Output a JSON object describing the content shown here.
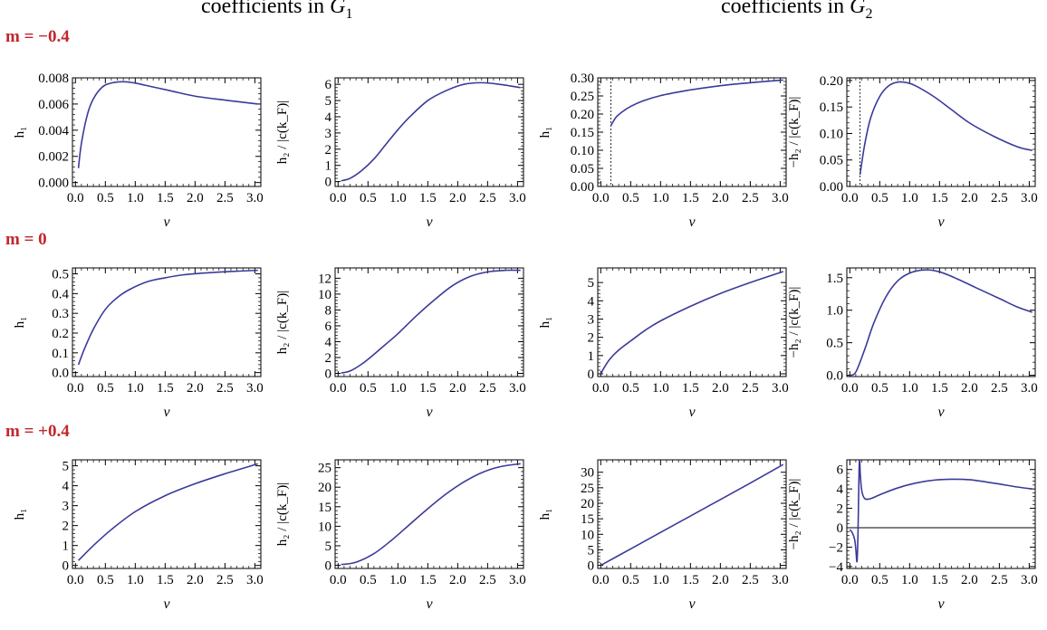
{
  "headers": {
    "left": {
      "text": "coefficients in ",
      "var": "G",
      "sub": "1"
    },
    "right": {
      "text": "coefficients in ",
      "var": "G",
      "sub": "2"
    }
  },
  "row_labels": [
    "m = −0.4",
    "m = 0",
    "m = +0.4"
  ],
  "style": {
    "line_color": "#3a3a9a",
    "row_label_color": "#c0272d"
  },
  "chart_data": [
    {
      "type": "line",
      "row": 0,
      "col": 0,
      "xlabel": "ν",
      "ylabel": "h₁",
      "xlim": [
        -0.05,
        3.1
      ],
      "ylim": [
        -0.0003,
        0.008
      ],
      "xticks": [
        "0.0",
        "0.5",
        "1.0",
        "1.5",
        "2.0",
        "2.5",
        "3.0"
      ],
      "yticks": [
        "0.000",
        "0.002",
        "0.004",
        "0.006",
        "0.008"
      ],
      "series": [
        {
          "x": [
            0.05,
            0.1,
            0.2,
            0.3,
            0.45,
            0.6,
            0.8,
            1.0,
            1.3,
            1.6,
            2.0,
            2.5,
            3.05
          ],
          "y": [
            0.0011,
            0.003,
            0.0052,
            0.0064,
            0.0073,
            0.0076,
            0.0077,
            0.0076,
            0.0073,
            0.007,
            0.0066,
            0.0063,
            0.006
          ]
        }
      ]
    },
    {
      "type": "line",
      "row": 0,
      "col": 1,
      "xlabel": "ν",
      "ylabel": "h₂ / |c(k_F)|",
      "xlim": [
        -0.05,
        3.1
      ],
      "ylim": [
        -0.3,
        6.4
      ],
      "xticks": [
        "0.0",
        "0.5",
        "1.0",
        "1.5",
        "2.0",
        "2.5",
        "3.0"
      ],
      "yticks": [
        "0",
        "1",
        "2",
        "3",
        "4",
        "5",
        "6"
      ],
      "series": [
        {
          "x": [
            0.05,
            0.2,
            0.4,
            0.6,
            0.8,
            1.0,
            1.2,
            1.5,
            1.8,
            2.1,
            2.4,
            2.7,
            3.05
          ],
          "y": [
            0.05,
            0.2,
            0.7,
            1.4,
            2.3,
            3.2,
            4.0,
            5.0,
            5.6,
            6.0,
            6.1,
            6.0,
            5.8
          ]
        }
      ]
    },
    {
      "type": "line",
      "row": 0,
      "col": 2,
      "xlabel": "ν",
      "ylabel": "h₁",
      "xlim": [
        -0.05,
        3.1
      ],
      "ylim": [
        0.0,
        0.3
      ],
      "vline": 0.17,
      "xticks": [
        "0.0",
        "0.5",
        "1.0",
        "1.5",
        "2.0",
        "2.5",
        "3.0"
      ],
      "yticks": [
        "0.00",
        "0.05",
        "0.10",
        "0.15",
        "0.20",
        "0.25",
        "0.30"
      ],
      "series": [
        {
          "x": [
            0.17,
            0.25,
            0.35,
            0.5,
            0.7,
            1.0,
            1.4,
            1.8,
            2.2,
            2.6,
            3.05
          ],
          "y": [
            0.168,
            0.19,
            0.205,
            0.221,
            0.236,
            0.251,
            0.264,
            0.274,
            0.282,
            0.288,
            0.294
          ]
        }
      ]
    },
    {
      "type": "line",
      "row": 0,
      "col": 3,
      "xlabel": "ν",
      "ylabel": "−h₂ / |c(k_F)|",
      "xlim": [
        -0.05,
        3.1
      ],
      "ylim": [
        0.0,
        0.205
      ],
      "vline": 0.17,
      "xticks": [
        "0.0",
        "0.5",
        "1.0",
        "1.5",
        "2.0",
        "2.5",
        "3.0"
      ],
      "yticks": [
        "0.00",
        "0.05",
        "0.10",
        "0.15",
        "0.20"
      ],
      "series": [
        {
          "x": [
            0.17,
            0.25,
            0.35,
            0.5,
            0.65,
            0.8,
            0.95,
            1.1,
            1.4,
            1.7,
            2.0,
            2.4,
            2.8,
            3.05
          ],
          "y": [
            0.022,
            0.08,
            0.13,
            0.17,
            0.19,
            0.197,
            0.196,
            0.19,
            0.17,
            0.145,
            0.12,
            0.095,
            0.075,
            0.068
          ]
        }
      ]
    },
    {
      "type": "line",
      "row": 1,
      "col": 0,
      "xlabel": "ν",
      "ylabel": "h₁",
      "xlim": [
        -0.05,
        3.1
      ],
      "ylim": [
        -0.02,
        0.53
      ],
      "xticks": [
        "0.0",
        "0.5",
        "1.0",
        "1.5",
        "2.0",
        "2.5",
        "3.0"
      ],
      "yticks": [
        "0.0",
        "0.1",
        "0.2",
        "0.3",
        "0.4",
        "0.5"
      ],
      "series": [
        {
          "x": [
            0.05,
            0.15,
            0.3,
            0.5,
            0.7,
            0.9,
            1.2,
            1.5,
            1.8,
            2.2,
            2.6,
            3.05
          ],
          "y": [
            0.04,
            0.12,
            0.22,
            0.32,
            0.38,
            0.42,
            0.46,
            0.48,
            0.495,
            0.505,
            0.512,
            0.518
          ]
        }
      ]
    },
    {
      "type": "line",
      "row": 1,
      "col": 1,
      "xlabel": "ν",
      "ylabel": "h₂ / |c(k_F)|",
      "xlim": [
        -0.05,
        3.1
      ],
      "ylim": [
        -0.4,
        13.3
      ],
      "xticks": [
        "0.0",
        "0.5",
        "1.0",
        "1.5",
        "2.0",
        "2.5",
        "3.0"
      ],
      "yticks": [
        "0",
        "2",
        "4",
        "6",
        "8",
        "10",
        "12"
      ],
      "series": [
        {
          "x": [
            0.05,
            0.2,
            0.4,
            0.6,
            0.8,
            1.0,
            1.3,
            1.6,
            1.9,
            2.2,
            2.5,
            2.8,
            3.05
          ],
          "y": [
            0.05,
            0.3,
            1.2,
            2.4,
            3.7,
            5.0,
            7.2,
            9.2,
            11.0,
            12.2,
            12.8,
            13.0,
            13.0
          ]
        }
      ]
    },
    {
      "type": "line",
      "row": 1,
      "col": 2,
      "xlabel": "ν",
      "ylabel": "h₁",
      "xlim": [
        -0.05,
        3.1
      ],
      "ylim": [
        -0.15,
        5.8
      ],
      "xticks": [
        "0.0",
        "0.5",
        "1.0",
        "1.5",
        "2.0",
        "2.5",
        "3.0"
      ],
      "yticks": [
        "0",
        "1",
        "2",
        "3",
        "4",
        "5"
      ],
      "series": [
        {
          "x": [
            0.0,
            0.05,
            0.15,
            0.3,
            0.5,
            0.75,
            1.0,
            1.5,
            2.0,
            2.5,
            3.05
          ],
          "y": [
            0.0,
            0.3,
            0.8,
            1.3,
            1.8,
            2.4,
            2.9,
            3.7,
            4.4,
            5.0,
            5.6
          ]
        }
      ]
    },
    {
      "type": "line",
      "row": 1,
      "col": 3,
      "xlabel": "ν",
      "ylabel": "−h₂ / |c(k_F)|",
      "xlim": [
        -0.05,
        3.1
      ],
      "ylim": [
        -0.02,
        1.65
      ],
      "xticks": [
        "0.0",
        "0.5",
        "1.0",
        "1.5",
        "2.0",
        "2.5",
        "3.0"
      ],
      "yticks": [
        "0.0",
        "0.5",
        "1.0",
        "1.5"
      ],
      "series": [
        {
          "x": [
            0.0,
            0.1,
            0.25,
            0.4,
            0.6,
            0.8,
            1.0,
            1.25,
            1.5,
            1.8,
            2.1,
            2.5,
            2.8,
            3.05
          ],
          "y": [
            0.0,
            0.05,
            0.4,
            0.8,
            1.2,
            1.45,
            1.57,
            1.62,
            1.59,
            1.48,
            1.35,
            1.18,
            1.05,
            0.97
          ]
        }
      ]
    },
    {
      "type": "line",
      "row": 2,
      "col": 0,
      "xlabel": "ν",
      "ylabel": "h₁",
      "xlim": [
        -0.05,
        3.1
      ],
      "ylim": [
        -0.15,
        5.3
      ],
      "xticks": [
        "0.0",
        "0.5",
        "1.0",
        "1.5",
        "2.0",
        "2.5",
        "3.0"
      ],
      "yticks": [
        "0",
        "1",
        "2",
        "3",
        "4",
        "5"
      ],
      "series": [
        {
          "x": [
            0.05,
            0.3,
            0.6,
            1.0,
            1.5,
            2.0,
            2.5,
            3.05
          ],
          "y": [
            0.25,
            1.0,
            1.8,
            2.7,
            3.5,
            4.1,
            4.6,
            5.1
          ]
        }
      ]
    },
    {
      "type": "line",
      "row": 2,
      "col": 1,
      "xlabel": "ν",
      "ylabel": "h₂ / |c(k_F)|",
      "xlim": [
        -0.05,
        3.1
      ],
      "ylim": [
        -0.8,
        27.0
      ],
      "xticks": [
        "0.0",
        "0.5",
        "1.0",
        "1.5",
        "2.0",
        "2.5",
        "3.0"
      ],
      "yticks": [
        "0",
        "5",
        "10",
        "15",
        "20",
        "25"
      ],
      "series": [
        {
          "x": [
            0.05,
            0.3,
            0.6,
            0.9,
            1.2,
            1.5,
            1.8,
            2.1,
            2.4,
            2.7,
            3.05
          ],
          "y": [
            0.2,
            0.8,
            3.0,
            6.5,
            10.5,
            14.5,
            18.2,
            21.3,
            23.7,
            25.2,
            26.0
          ]
        }
      ]
    },
    {
      "type": "line",
      "row": 2,
      "col": 2,
      "xlabel": "ν",
      "ylabel": "h₁",
      "xlim": [
        -0.05,
        3.1
      ],
      "ylim": [
        -1.0,
        34.0
      ],
      "xticks": [
        "0.0",
        "0.5",
        "1.0",
        "1.5",
        "2.0",
        "2.5",
        "3.0"
      ],
      "yticks": [
        "0",
        "5",
        "10",
        "15",
        "20",
        "25",
        "30"
      ],
      "series": [
        {
          "x": [
            0.0,
            0.5,
            1.0,
            1.5,
            2.0,
            2.5,
            3.05
          ],
          "y": [
            0.0,
            5.3,
            10.6,
            15.9,
            21.2,
            26.5,
            32.5
          ]
        }
      ]
    },
    {
      "type": "line",
      "row": 2,
      "col": 3,
      "xlabel": "ν",
      "ylabel": "−h₂ / |c(k_F)|",
      "xlim": [
        -0.05,
        3.1
      ],
      "ylim": [
        -4.2,
        7.0
      ],
      "hline": 0,
      "xticks": [
        "0.0",
        "0.5",
        "1.0",
        "1.5",
        "2.0",
        "2.5",
        "3.0"
      ],
      "yticks": [
        "−4",
        "−2",
        "0",
        "2",
        "4",
        "6"
      ],
      "series": [
        {
          "x": [
            0.0,
            0.04,
            0.08,
            0.1,
            0.12,
            0.135,
            0.145,
            0.155,
            0.165,
            0.175,
            0.2,
            0.25,
            0.35,
            0.5,
            0.8,
            1.1,
            1.4,
            1.7,
            2.0,
            2.4,
            2.8,
            3.05
          ],
          "y": [
            -0.2,
            -0.5,
            -1.2,
            -2.2,
            -3.5,
            -1.0,
            2.5,
            6.0,
            7.0,
            5.5,
            3.8,
            3.0,
            3.0,
            3.4,
            4.1,
            4.6,
            4.9,
            5.0,
            4.95,
            4.6,
            4.2,
            4.0
          ]
        }
      ]
    }
  ]
}
